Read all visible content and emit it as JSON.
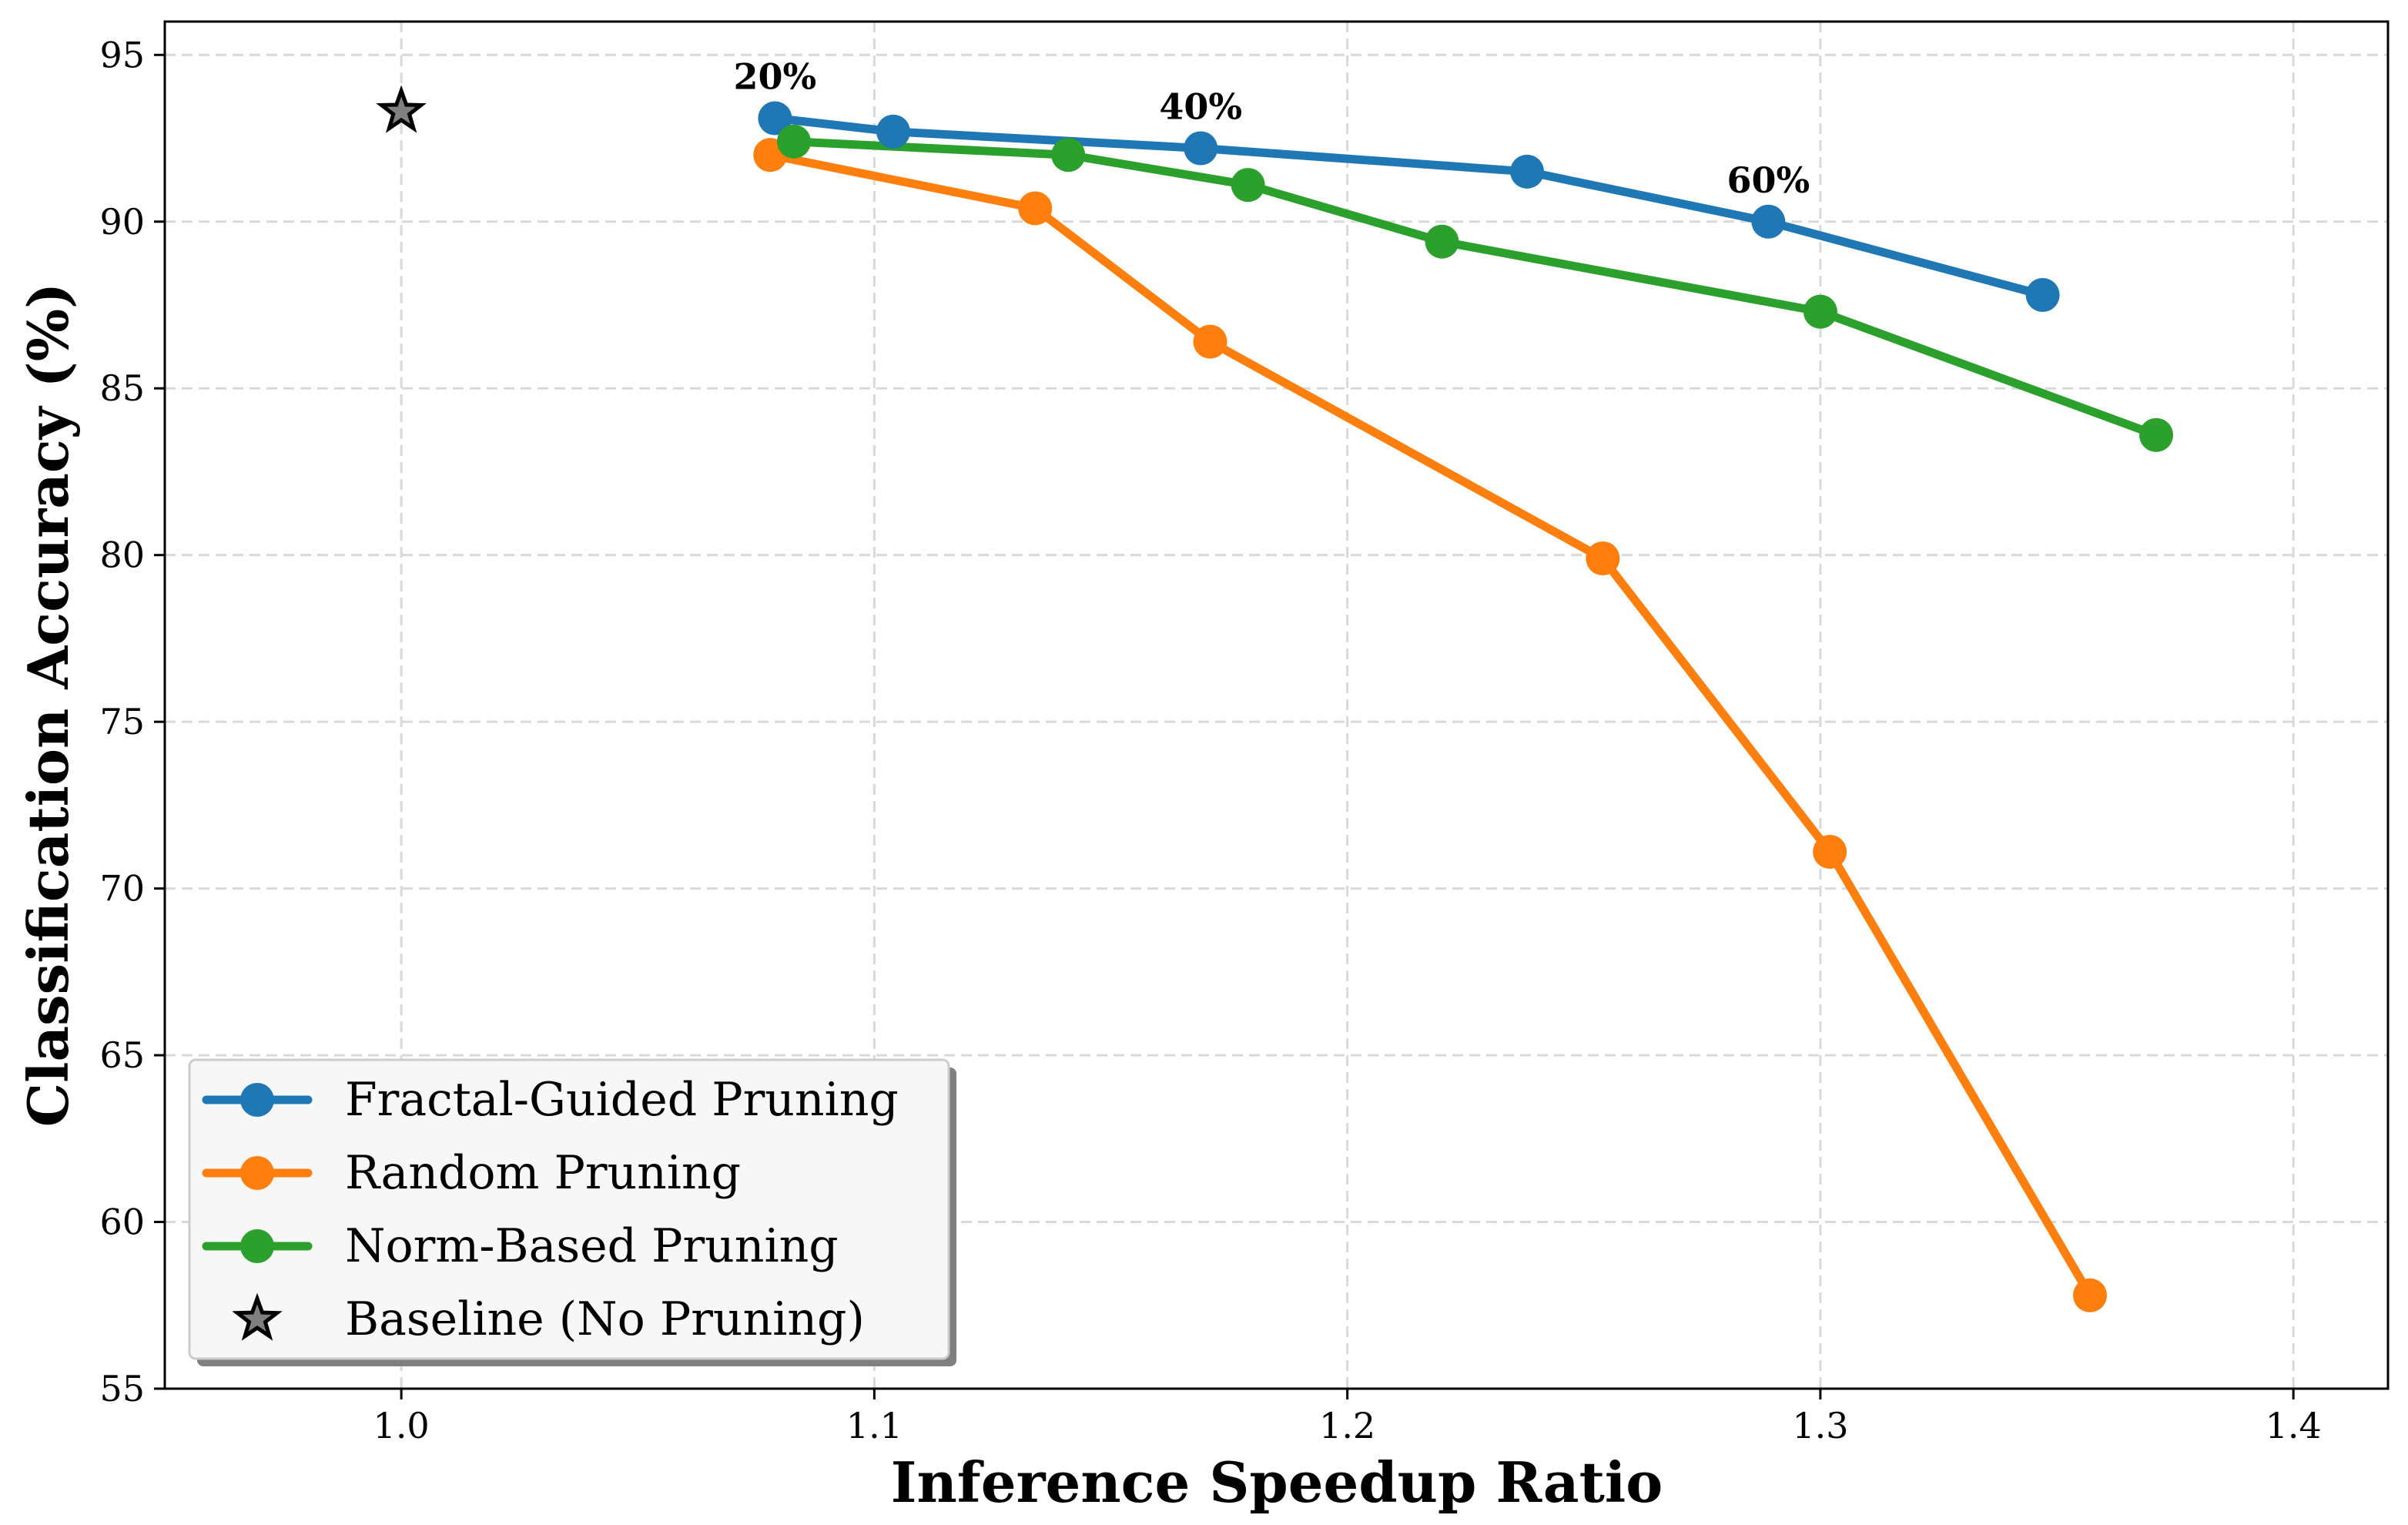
{
  "chart_data": {
    "type": "line",
    "title": "",
    "xlabel": "Inference Speedup Ratio",
    "ylabel": "Classification Accuracy (%)",
    "xlim": [
      0.95,
      1.42
    ],
    "ylim": [
      55,
      96
    ],
    "xticks": [
      1.0,
      1.1,
      1.2,
      1.3,
      1.4
    ],
    "xtick_labels": [
      "1.0",
      "1.1",
      "1.2",
      "1.3",
      "1.4"
    ],
    "yticks": [
      55,
      60,
      65,
      70,
      75,
      80,
      85,
      90,
      95
    ],
    "ytick_labels": [
      "55",
      "60",
      "65",
      "70",
      "75",
      "80",
      "85",
      "90",
      "95"
    ],
    "grid": true,
    "legend_position": "lower-left",
    "series": [
      {
        "name": "Fractal-Guided Pruning",
        "color": "#1f77b4",
        "x": [
          1.079,
          1.104,
          1.169,
          1.238,
          1.289,
          1.347
        ],
        "y": [
          93.1,
          92.7,
          92.2,
          91.5,
          90.0,
          87.8
        ]
      },
      {
        "name": "Random Pruning",
        "color": "#ff7f0e",
        "x": [
          1.078,
          1.134,
          1.171,
          1.254,
          1.302,
          1.357
        ],
        "y": [
          92.0,
          90.4,
          86.4,
          79.9,
          71.1,
          57.8
        ]
      },
      {
        "name": "Norm-Based Pruning",
        "color": "#2ca02c",
        "x": [
          1.083,
          1.141,
          1.179,
          1.22,
          1.3,
          1.371
        ],
        "y": [
          92.4,
          92.0,
          91.1,
          89.4,
          87.3,
          83.6
        ]
      }
    ],
    "baseline": {
      "name": "Baseline (No Pruning)",
      "x": 1.0,
      "y": 93.3,
      "marker": "star",
      "color": "#808080"
    },
    "annotations": [
      {
        "text": "20%",
        "x": 1.079,
        "y": 93.1
      },
      {
        "text": "40%",
        "x": 1.169,
        "y": 92.2
      },
      {
        "text": "60%",
        "x": 1.289,
        "y": 90.0
      }
    ]
  }
}
